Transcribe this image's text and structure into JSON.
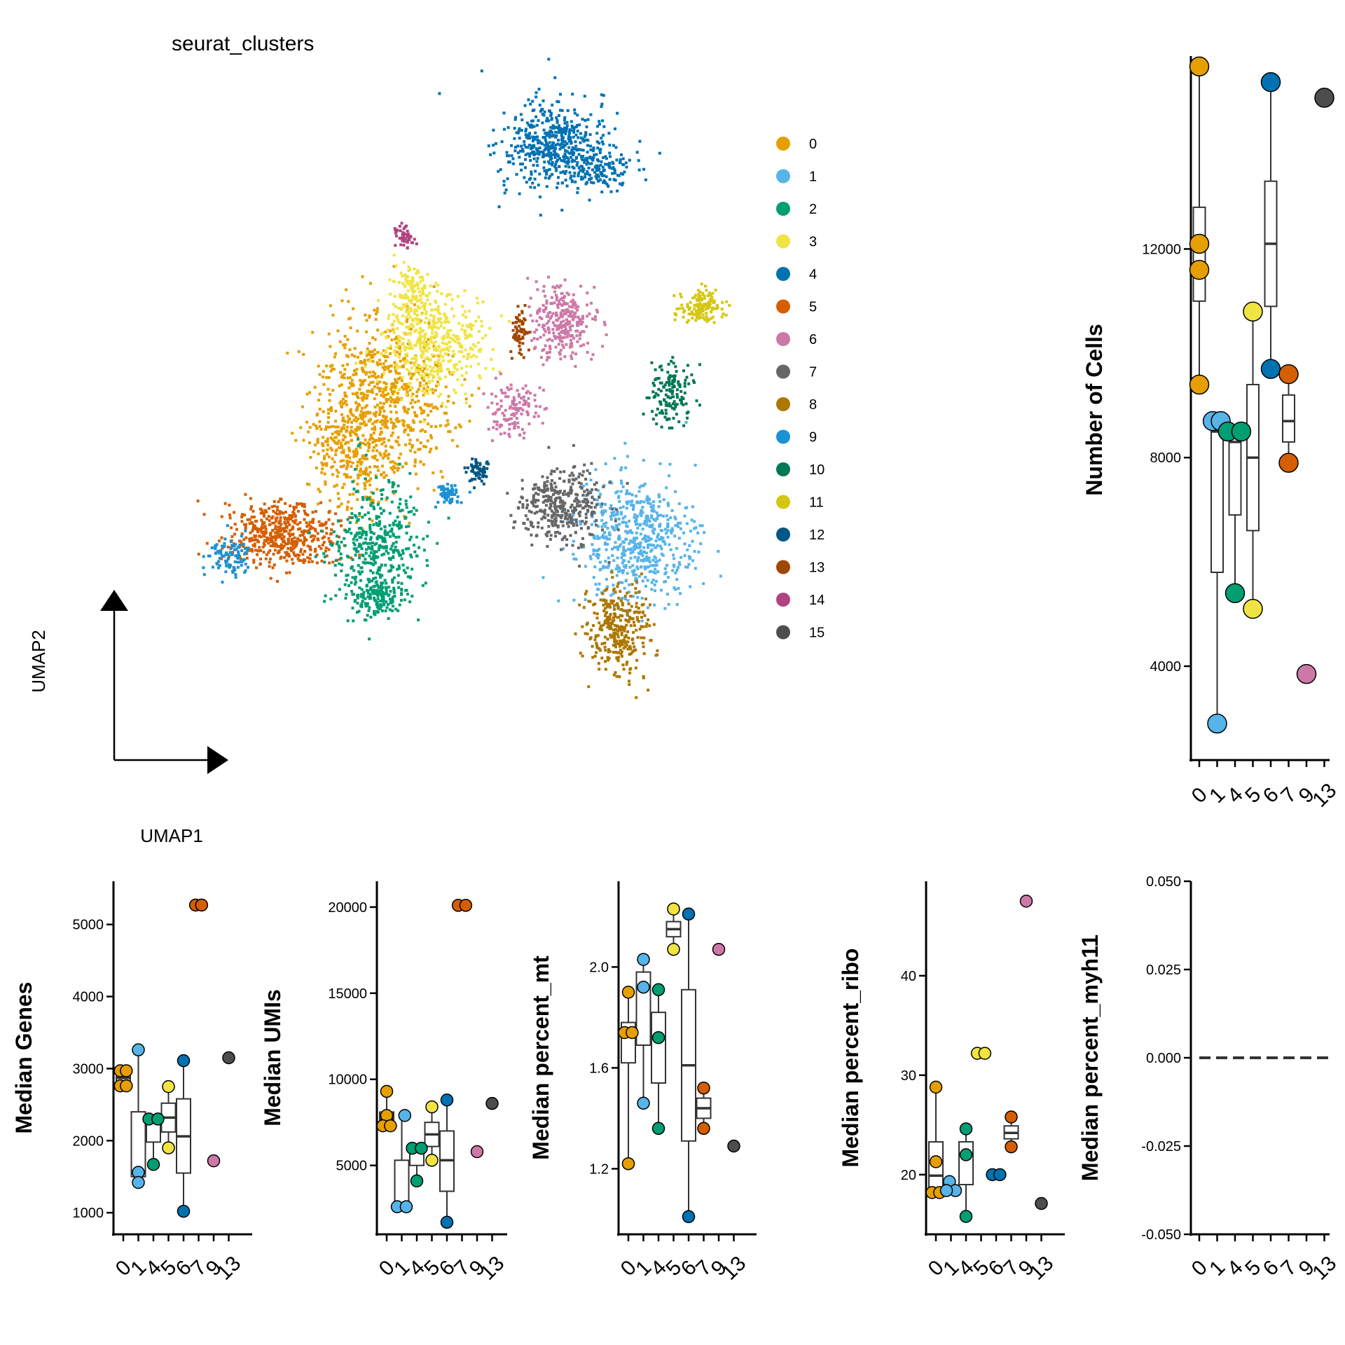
{
  "colors": {
    "cluster_palette": [
      "#E69F00",
      "#56B4E9",
      "#009E73",
      "#F0E442",
      "#0072B2",
      "#D55E00",
      "#CC79A7",
      "#666666",
      "#AD7700",
      "#1C91D4",
      "#007756",
      "#D5C711",
      "#005685",
      "#A04700",
      "#B14380",
      "#4D4D4D"
    ],
    "box_stroke": "#333333",
    "axis": "#000000"
  },
  "umap": {
    "title": "seurat_clusters",
    "xlabel": "UMAP1",
    "ylabel": "UMAP2",
    "legend": [
      "0",
      "1",
      "2",
      "3",
      "4",
      "5",
      "6",
      "7",
      "8",
      "9",
      "10",
      "11",
      "12",
      "13",
      "14",
      "15"
    ]
  },
  "chart_data": [
    {
      "id": "umap",
      "type": "scatter",
      "title": "seurat_clusters",
      "xlabel": "UMAP1",
      "ylabel": "UMAP2",
      "legend_position": "right",
      "series_names": [
        "0",
        "1",
        "2",
        "3",
        "4",
        "5",
        "6",
        "7",
        "8",
        "9",
        "10",
        "11",
        "12",
        "13",
        "14",
        "15"
      ],
      "grid": false
    },
    {
      "id": "cells",
      "type": "box",
      "ylabel": "Number of Cells",
      "ylim": [
        2200,
        15700
      ],
      "yticks": [
        4000,
        8000,
        12000
      ],
      "ytick_labels": [
        "4000",
        "8000",
        "12000"
      ],
      "categories": [
        "0",
        "1",
        "4",
        "5",
        "6",
        "7",
        "9",
        "13"
      ],
      "boxes": [
        {
          "pos": 0,
          "q1": 11000,
          "median": 12000,
          "q3": 12800,
          "lo": 9400,
          "hi": 15500
        },
        {
          "pos": 1,
          "q1": 5800,
          "median": 8500,
          "q3": 8600,
          "lo": 2900,
          "hi": 8700
        },
        {
          "pos": 2,
          "q1": 6900,
          "median": 8300,
          "q3": 8450,
          "lo": 5400,
          "hi": 8500
        },
        {
          "pos": 3,
          "q1": 6600,
          "median": 8000,
          "q3": 9400,
          "lo": 5100,
          "hi": 10800
        },
        {
          "pos": 4,
          "q1": 10900,
          "median": 12100,
          "q3": 13300,
          "lo": 9700,
          "hi": 15200
        },
        {
          "pos": 5,
          "q1": 8300,
          "median": 8700,
          "q3": 9200,
          "lo": 7900,
          "hi": 9600
        }
      ],
      "points": [
        {
          "x": 0,
          "y": 15500,
          "cluster": 0
        },
        {
          "x": 0,
          "y": 12100,
          "cluster": 0
        },
        {
          "x": 0,
          "y": 11600,
          "cluster": 0
        },
        {
          "x": 0,
          "y": 9400,
          "cluster": 0
        },
        {
          "x": 0.75,
          "y": 8700,
          "cluster": 1
        },
        {
          "x": 1.2,
          "y": 8700,
          "cluster": 1
        },
        {
          "x": 1.0,
          "y": 2900,
          "cluster": 1
        },
        {
          "x": 1.6,
          "y": 8500,
          "cluster": 2
        },
        {
          "x": 2.35,
          "y": 8500,
          "cluster": 2
        },
        {
          "x": 2.0,
          "y": 5400,
          "cluster": 2
        },
        {
          "x": 3.0,
          "y": 10800,
          "cluster": 3
        },
        {
          "x": 3.0,
          "y": 5100,
          "cluster": 3
        },
        {
          "x": 4.0,
          "y": 15200,
          "cluster": 4
        },
        {
          "x": 4.0,
          "y": 9700,
          "cluster": 4
        },
        {
          "x": 5.0,
          "y": 9600,
          "cluster": 5
        },
        {
          "x": 5.0,
          "y": 7900,
          "cluster": 5
        },
        {
          "x": 6.0,
          "y": 3850,
          "cluster": 6
        },
        {
          "x": 7.0,
          "y": 14900,
          "cluster": 15
        }
      ]
    },
    {
      "id": "genes",
      "type": "box",
      "ylabel": "Median Genes",
      "ylim": [
        700,
        5600
      ],
      "yticks": [
        1000,
        2000,
        3000,
        4000,
        5000
      ],
      "ytick_labels": [
        "1000",
        "2000",
        "3000",
        "4000",
        "5000"
      ],
      "categories": [
        "0",
        "1",
        "4",
        "5",
        "6",
        "7",
        "9",
        "13"
      ],
      "boxes": [
        {
          "pos": 0,
          "q1": 2820,
          "median": 2870,
          "q3": 2920,
          "lo": 2760,
          "hi": 2970
        },
        {
          "pos": 1,
          "q1": 1500,
          "median": 1550,
          "q3": 2400,
          "lo": 1420,
          "hi": 3260
        },
        {
          "pos": 2,
          "q1": 1980,
          "median": 2300,
          "q3": 2300,
          "lo": 1670,
          "hi": 2300
        },
        {
          "pos": 3,
          "q1": 2120,
          "median": 2320,
          "q3": 2520,
          "lo": 1900,
          "hi": 2750
        },
        {
          "pos": 4,
          "q1": 1550,
          "median": 2060,
          "q3": 2580,
          "lo": 1020,
          "hi": 3110
        }
      ],
      "points": [
        {
          "x": -0.2,
          "y": 2970,
          "cluster": 0
        },
        {
          "x": 0.2,
          "y": 2970,
          "cluster": 0
        },
        {
          "x": -0.2,
          "y": 2760,
          "cluster": 0
        },
        {
          "x": 0.2,
          "y": 2760,
          "cluster": 0
        },
        {
          "x": 1.0,
          "y": 3260,
          "cluster": 1
        },
        {
          "x": 1.0,
          "y": 1560,
          "cluster": 1
        },
        {
          "x": 1.0,
          "y": 1420,
          "cluster": 1
        },
        {
          "x": 1.7,
          "y": 2300,
          "cluster": 2
        },
        {
          "x": 2.3,
          "y": 2300,
          "cluster": 2
        },
        {
          "x": 2.0,
          "y": 1670,
          "cluster": 2
        },
        {
          "x": 3.0,
          "y": 2750,
          "cluster": 3
        },
        {
          "x": 3.0,
          "y": 1900,
          "cluster": 3
        },
        {
          "x": 4.0,
          "y": 3110,
          "cluster": 4
        },
        {
          "x": 4.0,
          "y": 1020,
          "cluster": 4
        },
        {
          "x": 4.8,
          "y": 5270,
          "cluster": 5
        },
        {
          "x": 5.2,
          "y": 5270,
          "cluster": 5
        },
        {
          "x": 6.0,
          "y": 1720,
          "cluster": 6
        },
        {
          "x": 7.0,
          "y": 3150,
          "cluster": 15
        }
      ]
    },
    {
      "id": "umis",
      "type": "box",
      "ylabel": "Median UMIs",
      "ylim": [
        1000,
        21500
      ],
      "yticks": [
        5000,
        10000,
        15000,
        20000
      ],
      "ytick_labels": [
        "5000",
        "10000",
        "15000",
        "20000"
      ],
      "categories": [
        "0",
        "1",
        "4",
        "5",
        "6",
        "7",
        "9",
        "13"
      ],
      "boxes": [
        {
          "pos": 0,
          "q1": 7300,
          "median": 7700,
          "q3": 8100,
          "lo": 7300,
          "hi": 9300
        },
        {
          "pos": 1,
          "q1": 2600,
          "median": 2700,
          "q3": 5300,
          "lo": 2600,
          "hi": 7900
        },
        {
          "pos": 2,
          "q1": 5000,
          "median": 5900,
          "q3": 6000,
          "lo": 4100,
          "hi": 6000
        },
        {
          "pos": 3,
          "q1": 6100,
          "median": 6800,
          "q3": 7500,
          "lo": 5300,
          "hi": 8400
        },
        {
          "pos": 4,
          "q1": 3500,
          "median": 5300,
          "q3": 7000,
          "lo": 1700,
          "hi": 8800
        }
      ],
      "points": [
        {
          "x": 0,
          "y": 9300,
          "cluster": 0
        },
        {
          "x": 0,
          "y": 7900,
          "cluster": 0
        },
        {
          "x": -0.25,
          "y": 7300,
          "cluster": 0
        },
        {
          "x": 0.25,
          "y": 7300,
          "cluster": 0
        },
        {
          "x": 0.7,
          "y": 2600,
          "cluster": 1
        },
        {
          "x": 1.3,
          "y": 2600,
          "cluster": 1
        },
        {
          "x": 1.2,
          "y": 7900,
          "cluster": 1
        },
        {
          "x": 1.7,
          "y": 6000,
          "cluster": 2
        },
        {
          "x": 2.3,
          "y": 6000,
          "cluster": 2
        },
        {
          "x": 2.0,
          "y": 4100,
          "cluster": 2
        },
        {
          "x": 3.0,
          "y": 8400,
          "cluster": 3
        },
        {
          "x": 3.0,
          "y": 5300,
          "cluster": 3
        },
        {
          "x": 4.0,
          "y": 8800,
          "cluster": 4
        },
        {
          "x": 4.0,
          "y": 1700,
          "cluster": 4
        },
        {
          "x": 4.75,
          "y": 20100,
          "cluster": 5
        },
        {
          "x": 5.25,
          "y": 20100,
          "cluster": 5
        },
        {
          "x": 6.0,
          "y": 5800,
          "cluster": 6
        },
        {
          "x": 7.0,
          "y": 8600,
          "cluster": 15
        }
      ]
    },
    {
      "id": "mt",
      "type": "box",
      "ylabel": "Median percent_mt",
      "ylim": [
        0.94,
        2.34
      ],
      "yticks": [
        1.2,
        1.6,
        2.0
      ],
      "ytick_labels": [
        "1.2",
        "1.6",
        "2.0"
      ],
      "categories": [
        "0",
        "1",
        "4",
        "5",
        "6",
        "7",
        "9",
        "13"
      ],
      "boxes": [
        {
          "pos": 0,
          "q1": 1.62,
          "median": 1.74,
          "q3": 1.78,
          "lo": 1.22,
          "hi": 1.9
        },
        {
          "pos": 1,
          "q1": 1.69,
          "median": 1.92,
          "q3": 1.98,
          "lo": 1.46,
          "hi": 2.03
        },
        {
          "pos": 2,
          "q1": 1.54,
          "median": 1.72,
          "q3": 1.82,
          "lo": 1.36,
          "hi": 1.91
        },
        {
          "pos": 3,
          "q1": 2.12,
          "median": 2.15,
          "q3": 2.18,
          "lo": 2.07,
          "hi": 2.23
        },
        {
          "pos": 4,
          "q1": 1.31,
          "median": 1.61,
          "q3": 1.91,
          "lo": 1.01,
          "hi": 2.21
        },
        {
          "pos": 5,
          "q1": 1.4,
          "median": 1.44,
          "q3": 1.48,
          "lo": 1.36,
          "hi": 1.52
        }
      ],
      "points": [
        {
          "x": 0,
          "y": 1.9,
          "cluster": 0
        },
        {
          "x": -0.25,
          "y": 1.74,
          "cluster": 0
        },
        {
          "x": 0.25,
          "y": 1.74,
          "cluster": 0
        },
        {
          "x": 0,
          "y": 1.22,
          "cluster": 0
        },
        {
          "x": 1.0,
          "y": 2.03,
          "cluster": 1
        },
        {
          "x": 1.0,
          "y": 1.92,
          "cluster": 1
        },
        {
          "x": 1.0,
          "y": 1.46,
          "cluster": 1
        },
        {
          "x": 2.0,
          "y": 1.91,
          "cluster": 2
        },
        {
          "x": 2.0,
          "y": 1.72,
          "cluster": 2
        },
        {
          "x": 2.0,
          "y": 1.36,
          "cluster": 2
        },
        {
          "x": 3.0,
          "y": 2.23,
          "cluster": 3
        },
        {
          "x": 3.0,
          "y": 2.07,
          "cluster": 3
        },
        {
          "x": 4.0,
          "y": 2.21,
          "cluster": 4
        },
        {
          "x": 4.0,
          "y": 1.01,
          "cluster": 4
        },
        {
          "x": 5.0,
          "y": 1.52,
          "cluster": 5
        },
        {
          "x": 5.0,
          "y": 1.36,
          "cluster": 5
        },
        {
          "x": 6.0,
          "y": 2.07,
          "cluster": 6
        },
        {
          "x": 7.0,
          "y": 1.29,
          "cluster": 15
        }
      ]
    },
    {
      "id": "ribo",
      "type": "box",
      "ylabel": "Median percent_ribo",
      "ylim": [
        14,
        49.5
      ],
      "yticks": [
        20,
        30,
        40
      ],
      "ytick_labels": [
        "20",
        "30",
        "40"
      ],
      "categories": [
        "0",
        "1",
        "4",
        "5",
        "6",
        "7",
        "9",
        "13"
      ],
      "boxes": [
        {
          "pos": 0,
          "q1": 18.3,
          "median": 19.9,
          "q3": 23.3,
          "lo": 18.2,
          "hi": 28.8
        },
        {
          "pos": 2,
          "q1": 19.0,
          "median": 22.0,
          "q3": 23.3,
          "lo": 15.8,
          "hi": 24.6
        },
        {
          "pos": 5,
          "q1": 23.6,
          "median": 24.2,
          "q3": 24.9,
          "lo": 22.8,
          "hi": 25.8
        }
      ],
      "points": [
        {
          "x": 0,
          "y": 28.8,
          "cluster": 0
        },
        {
          "x": 0,
          "y": 21.3,
          "cluster": 0
        },
        {
          "x": -0.25,
          "y": 18.2,
          "cluster": 0
        },
        {
          "x": 0.25,
          "y": 18.2,
          "cluster": 0
        },
        {
          "x": 0.9,
          "y": 19.3,
          "cluster": 1
        },
        {
          "x": 1.3,
          "y": 18.4,
          "cluster": 1
        },
        {
          "x": 0.7,
          "y": 18.4,
          "cluster": 1
        },
        {
          "x": 2.0,
          "y": 24.6,
          "cluster": 2
        },
        {
          "x": 2.0,
          "y": 22.0,
          "cluster": 2
        },
        {
          "x": 2.0,
          "y": 15.8,
          "cluster": 2
        },
        {
          "x": 2.75,
          "y": 32.2,
          "cluster": 3
        },
        {
          "x": 3.25,
          "y": 32.2,
          "cluster": 3
        },
        {
          "x": 3.75,
          "y": 20.0,
          "cluster": 4
        },
        {
          "x": 4.25,
          "y": 20.0,
          "cluster": 4
        },
        {
          "x": 5.0,
          "y": 25.8,
          "cluster": 5
        },
        {
          "x": 5.0,
          "y": 22.8,
          "cluster": 5
        },
        {
          "x": 6.0,
          "y": 47.5,
          "cluster": 6
        },
        {
          "x": 7.0,
          "y": 17.1,
          "cluster": 15
        }
      ]
    },
    {
      "id": "myh11",
      "type": "line",
      "ylabel": "Median percent_myh11",
      "ylim": [
        -0.05,
        0.05
      ],
      "yticks": [
        -0.05,
        -0.025,
        0,
        0.025,
        0.05
      ],
      "ytick_labels": [
        "-0.050",
        "-0.025",
        "0.000",
        "0.025",
        "0.050"
      ],
      "categories": [
        "0",
        "1",
        "4",
        "5",
        "6",
        "7",
        "9",
        "13"
      ],
      "values": [
        0,
        0,
        0,
        0,
        0,
        0,
        0,
        0
      ]
    }
  ]
}
